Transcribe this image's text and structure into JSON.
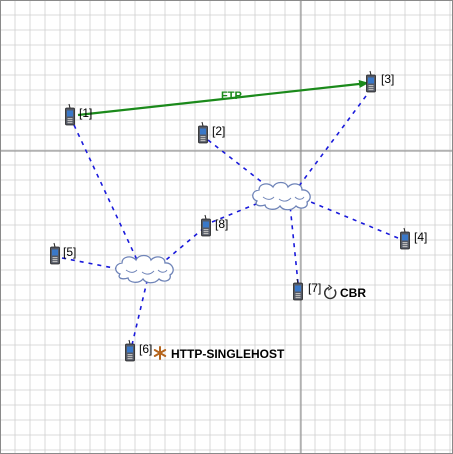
{
  "nodes": [
    {
      "id": "1",
      "label": "[1]"
    },
    {
      "id": "2",
      "label": "[2]"
    },
    {
      "id": "3",
      "label": "[3]"
    },
    {
      "id": "4",
      "label": "[4]"
    },
    {
      "id": "5",
      "label": "[5]"
    },
    {
      "id": "6",
      "label": "[6]"
    },
    {
      "id": "7",
      "label": "[7]"
    },
    {
      "id": "8",
      "label": "[8]"
    }
  ],
  "flow": {
    "label": "FTP",
    "from": "1",
    "to": "3",
    "color": "#1b8a1b"
  },
  "applications": [
    {
      "node": "7",
      "label": "CBR",
      "icon": "refresh-icon"
    },
    {
      "node": "6",
      "label": "HTTP-SINGLEHOST",
      "icon": "asterisk-icon",
      "icon_color": "#b5651d"
    }
  ],
  "colors": {
    "grid_minor": "#cfcfcf",
    "grid_major": "#8a8a8a",
    "link": "#1a1adb",
    "cloud": "#6f84b8"
  }
}
